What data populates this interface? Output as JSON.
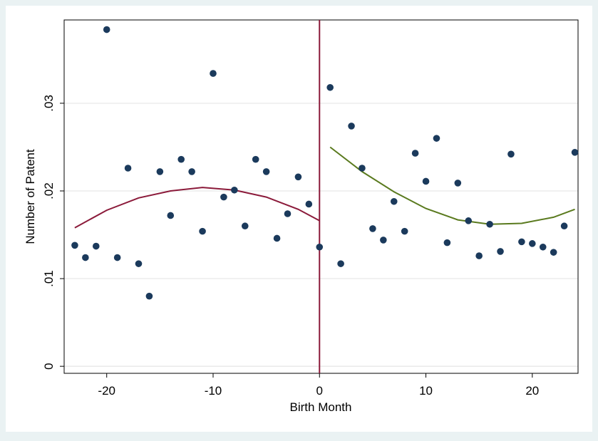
{
  "chart_data": {
    "type": "scatter",
    "title": "",
    "xlabel": "Birth Month",
    "ylabel": "Number of Patent",
    "xlim": [
      -24,
      24.3
    ],
    "ylim": [
      -0.0008,
      0.0395
    ],
    "x_ticks": [
      {
        "value": -20,
        "label": "-20"
      },
      {
        "value": -10,
        "label": "-10"
      },
      {
        "value": 0,
        "label": "0"
      },
      {
        "value": 10,
        "label": "10"
      },
      {
        "value": 20,
        "label": "20"
      }
    ],
    "y_ticks": [
      {
        "value": 0,
        "label": "0"
      },
      {
        "value": 0.01,
        "label": ".01"
      },
      {
        "value": 0.02,
        "label": ".02"
      },
      {
        "value": 0.03,
        "label": ".03"
      }
    ],
    "grid": true,
    "vertical_line": {
      "x": 0,
      "color": "#8b1a3a"
    },
    "points": [
      {
        "x": -23,
        "y": 0.0138
      },
      {
        "x": -22,
        "y": 0.0124
      },
      {
        "x": -21,
        "y": 0.0137
      },
      {
        "x": -20,
        "y": 0.0384
      },
      {
        "x": -19,
        "y": 0.0124
      },
      {
        "x": -18,
        "y": 0.0226
      },
      {
        "x": -17,
        "y": 0.0117
      },
      {
        "x": -16,
        "y": 0.008
      },
      {
        "x": -15,
        "y": 0.0222
      },
      {
        "x": -14,
        "y": 0.0172
      },
      {
        "x": -13,
        "y": 0.0236
      },
      {
        "x": -12,
        "y": 0.0222
      },
      {
        "x": -11,
        "y": 0.0154
      },
      {
        "x": -10,
        "y": 0.0334
      },
      {
        "x": -9,
        "y": 0.0193
      },
      {
        "x": -8,
        "y": 0.0201
      },
      {
        "x": -7,
        "y": 0.016
      },
      {
        "x": -6,
        "y": 0.0236
      },
      {
        "x": -5,
        "y": 0.0222
      },
      {
        "x": -4,
        "y": 0.0146
      },
      {
        "x": -3,
        "y": 0.0174
      },
      {
        "x": -2,
        "y": 0.0216
      },
      {
        "x": -1,
        "y": 0.0185
      },
      {
        "x": 0,
        "y": 0.0136
      },
      {
        "x": 1,
        "y": 0.0318
      },
      {
        "x": 2,
        "y": 0.0117
      },
      {
        "x": 3,
        "y": 0.0274
      },
      {
        "x": 4,
        "y": 0.0226
      },
      {
        "x": 5,
        "y": 0.0157
      },
      {
        "x": 6,
        "y": 0.0144
      },
      {
        "x": 7,
        "y": 0.0188
      },
      {
        "x": 8,
        "y": 0.0154
      },
      {
        "x": 9,
        "y": 0.0243
      },
      {
        "x": 10,
        "y": 0.0211
      },
      {
        "x": 11,
        "y": 0.026
      },
      {
        "x": 12,
        "y": 0.0141
      },
      {
        "x": 13,
        "y": 0.0209
      },
      {
        "x": 14,
        "y": 0.0166
      },
      {
        "x": 15,
        "y": 0.0126
      },
      {
        "x": 16,
        "y": 0.0162
      },
      {
        "x": 17,
        "y": 0.0131
      },
      {
        "x": 18,
        "y": 0.0242
      },
      {
        "x": 19,
        "y": 0.0142
      },
      {
        "x": 20,
        "y": 0.014
      },
      {
        "x": 21,
        "y": 0.0136
      },
      {
        "x": 22,
        "y": 0.013
      },
      {
        "x": 23,
        "y": 0.016
      },
      {
        "x": 24,
        "y": 0.0244
      }
    ],
    "fit_lines": [
      {
        "color": "#8b1a3a",
        "points": [
          {
            "x": -23,
            "y": 0.0158
          },
          {
            "x": -20,
            "y": 0.0178
          },
          {
            "x": -17,
            "y": 0.0192
          },
          {
            "x": -14,
            "y": 0.02
          },
          {
            "x": -11,
            "y": 0.0204
          },
          {
            "x": -8,
            "y": 0.0201
          },
          {
            "x": -5,
            "y": 0.0193
          },
          {
            "x": -2,
            "y": 0.0179
          },
          {
            "x": 0,
            "y": 0.0166
          }
        ]
      },
      {
        "color": "#5a7a1e",
        "points": [
          {
            "x": 1,
            "y": 0.025
          },
          {
            "x": 4,
            "y": 0.0222
          },
          {
            "x": 7,
            "y": 0.0199
          },
          {
            "x": 10,
            "y": 0.018
          },
          {
            "x": 13,
            "y": 0.0167
          },
          {
            "x": 16,
            "y": 0.0162
          },
          {
            "x": 19,
            "y": 0.0163
          },
          {
            "x": 22,
            "y": 0.017
          },
          {
            "x": 24,
            "y": 0.0179
          }
        ]
      }
    ],
    "marker_color": "#1b3a5c"
  }
}
